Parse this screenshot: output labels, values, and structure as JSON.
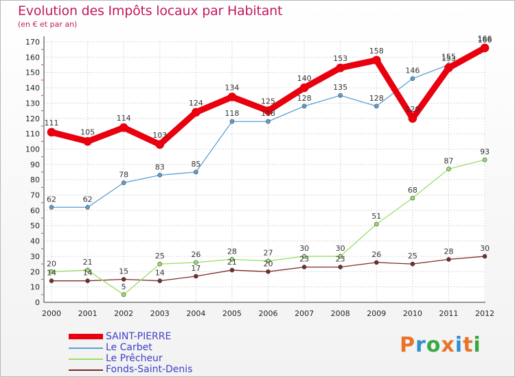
{
  "title": "Evolution des Impôts locaux par Habitant",
  "subtitle": "(en € et par an)",
  "logo": {
    "text": "Proxiti",
    "colors": [
      "#e8732a",
      "#2f8fd0",
      "#3aa845",
      "#e8732a",
      "#2f8fd0",
      "#e8732a",
      "#3aa845"
    ]
  },
  "chart_data": {
    "type": "line",
    "x": [
      "2000",
      "2001",
      "2002",
      "2003",
      "2004",
      "2005",
      "2006",
      "2007",
      "2008",
      "2009",
      "2010",
      "2011",
      "2012"
    ],
    "ylim": [
      0,
      170
    ],
    "yticks": [
      0,
      10,
      20,
      30,
      40,
      50,
      60,
      70,
      80,
      90,
      100,
      110,
      120,
      130,
      140,
      150,
      160,
      170
    ],
    "grid": true,
    "legend": "bottom-left",
    "series": [
      {
        "name": "SAINT-PIERRE",
        "color": "#e8000e",
        "values": [
          111,
          105,
          114,
          103,
          124,
          134,
          125,
          140,
          153,
          158,
          120,
          153,
          166
        ]
      },
      {
        "name": "Le Carbet",
        "color": "#5a9fd4",
        "values": [
          62,
          62,
          78,
          83,
          85,
          118,
          118,
          128,
          135,
          128,
          146,
          155,
          166
        ]
      },
      {
        "name": "Le Prêcheur",
        "color": "#99dd66",
        "values": [
          20,
          21,
          5,
          25,
          26,
          28,
          27,
          30,
          30,
          51,
          68,
          87,
          93
        ]
      },
      {
        "name": "Fonds-Saint-Denis",
        "color": "#7a2a2a",
        "values": [
          14,
          14,
          15,
          14,
          17,
          21,
          20,
          23,
          23,
          26,
          25,
          28,
          30
        ]
      }
    ]
  }
}
